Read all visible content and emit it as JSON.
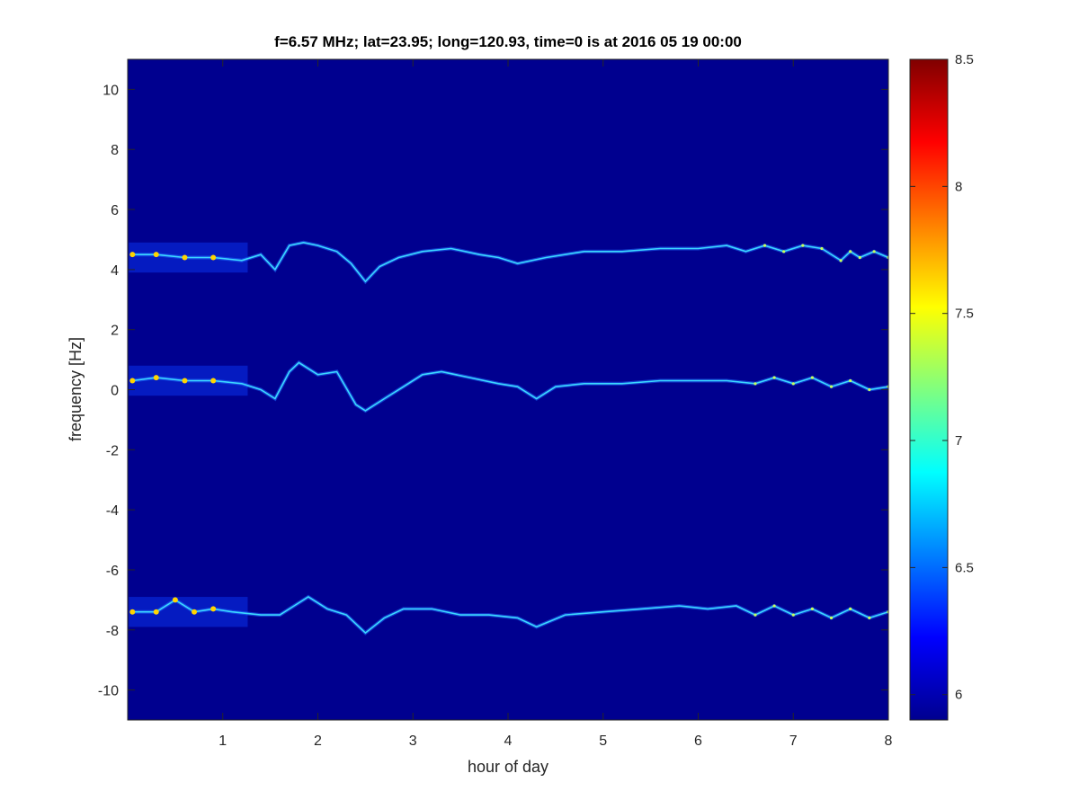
{
  "chart_data": {
    "type": "heatmap",
    "title": "f=6.57 MHz;  lat=23.95; long=120.93, time=0 is at 2016 05 19 00:00",
    "xlabel": "hour of day",
    "ylabel": "frequency [Hz]",
    "xlim": [
      0,
      8
    ],
    "ylim": [
      -11,
      11
    ],
    "xticks": [
      1,
      2,
      3,
      4,
      5,
      6,
      7,
      8
    ],
    "xtick_labels": [
      "1",
      "2",
      "3",
      "4",
      "5",
      "6",
      "7",
      "8"
    ],
    "yticks": [
      10,
      8,
      6,
      4,
      2,
      0,
      -2,
      -4,
      -6,
      -8,
      -10
    ],
    "ytick_labels": [
      "10",
      "8",
      "6",
      "4",
      "2",
      "0",
      "-2",
      "-4",
      "-6",
      "-8",
      "-10"
    ],
    "colorbar": {
      "colormap": "jet",
      "range": [
        5.9,
        8.5
      ],
      "ticks": [
        6,
        6.5,
        7,
        7.5,
        8,
        8.5
      ],
      "tick_labels": [
        "6",
        "6.5",
        "7",
        "7.5",
        "8",
        "8.5"
      ]
    },
    "background_value": 5.95,
    "colors": {
      "background": "#00008f",
      "axes": "#262626"
    },
    "series": [
      {
        "center_freq": 4.4,
        "trace": [
          [
            0.05,
            4.5
          ],
          [
            0.3,
            4.5
          ],
          [
            0.6,
            4.4
          ],
          [
            0.9,
            4.4
          ],
          [
            1.2,
            4.3
          ],
          [
            1.4,
            4.5
          ],
          [
            1.55,
            4.0
          ],
          [
            1.7,
            4.8
          ],
          [
            1.85,
            4.9
          ],
          [
            2.0,
            4.8
          ],
          [
            2.2,
            4.6
          ],
          [
            2.35,
            4.2
          ],
          [
            2.5,
            3.6
          ],
          [
            2.65,
            4.1
          ],
          [
            2.85,
            4.4
          ],
          [
            3.1,
            4.6
          ],
          [
            3.4,
            4.7
          ],
          [
            3.7,
            4.5
          ],
          [
            3.9,
            4.4
          ],
          [
            4.1,
            4.2
          ],
          [
            4.4,
            4.4
          ],
          [
            4.8,
            4.6
          ],
          [
            5.2,
            4.6
          ],
          [
            5.6,
            4.7
          ],
          [
            6.0,
            4.7
          ],
          [
            6.3,
            4.8
          ],
          [
            6.5,
            4.6
          ],
          [
            6.7,
            4.8
          ],
          [
            6.9,
            4.6
          ],
          [
            7.1,
            4.8
          ],
          [
            7.3,
            4.7
          ],
          [
            7.5,
            4.3
          ],
          [
            7.6,
            4.6
          ],
          [
            7.7,
            4.4
          ],
          [
            7.85,
            4.6
          ],
          [
            8.0,
            4.4
          ]
        ]
      },
      {
        "center_freq": 0.3,
        "trace": [
          [
            0.05,
            0.3
          ],
          [
            0.3,
            0.4
          ],
          [
            0.6,
            0.3
          ],
          [
            0.9,
            0.3
          ],
          [
            1.2,
            0.2
          ],
          [
            1.4,
            0.0
          ],
          [
            1.55,
            -0.3
          ],
          [
            1.7,
            0.6
          ],
          [
            1.8,
            0.9
          ],
          [
            2.0,
            0.5
          ],
          [
            2.2,
            0.6
          ],
          [
            2.4,
            -0.5
          ],
          [
            2.5,
            -0.7
          ],
          [
            2.7,
            -0.3
          ],
          [
            2.9,
            0.1
          ],
          [
            3.1,
            0.5
          ],
          [
            3.3,
            0.6
          ],
          [
            3.6,
            0.4
          ],
          [
            3.9,
            0.2
          ],
          [
            4.1,
            0.1
          ],
          [
            4.3,
            -0.3
          ],
          [
            4.5,
            0.1
          ],
          [
            4.8,
            0.2
          ],
          [
            5.2,
            0.2
          ],
          [
            5.6,
            0.3
          ],
          [
            6.0,
            0.3
          ],
          [
            6.3,
            0.3
          ],
          [
            6.6,
            0.2
          ],
          [
            6.8,
            0.4
          ],
          [
            7.0,
            0.2
          ],
          [
            7.2,
            0.4
          ],
          [
            7.4,
            0.1
          ],
          [
            7.6,
            0.3
          ],
          [
            7.8,
            0.0
          ],
          [
            8.0,
            0.1
          ]
        ]
      },
      {
        "center_freq": -7.4,
        "trace": [
          [
            0.05,
            -7.4
          ],
          [
            0.3,
            -7.4
          ],
          [
            0.5,
            -7.0
          ],
          [
            0.7,
            -7.4
          ],
          [
            0.9,
            -7.3
          ],
          [
            1.1,
            -7.4
          ],
          [
            1.4,
            -7.5
          ],
          [
            1.6,
            -7.5
          ],
          [
            1.75,
            -7.2
          ],
          [
            1.9,
            -6.9
          ],
          [
            2.1,
            -7.3
          ],
          [
            2.3,
            -7.5
          ],
          [
            2.5,
            -8.1
          ],
          [
            2.7,
            -7.6
          ],
          [
            2.9,
            -7.3
          ],
          [
            3.2,
            -7.3
          ],
          [
            3.5,
            -7.5
          ],
          [
            3.8,
            -7.5
          ],
          [
            4.1,
            -7.6
          ],
          [
            4.3,
            -7.9
          ],
          [
            4.6,
            -7.5
          ],
          [
            5.0,
            -7.4
          ],
          [
            5.4,
            -7.3
          ],
          [
            5.8,
            -7.2
          ],
          [
            6.1,
            -7.3
          ],
          [
            6.4,
            -7.2
          ],
          [
            6.6,
            -7.5
          ],
          [
            6.8,
            -7.2
          ],
          [
            7.0,
            -7.5
          ],
          [
            7.2,
            -7.3
          ],
          [
            7.4,
            -7.6
          ],
          [
            7.6,
            -7.3
          ],
          [
            7.8,
            -7.6
          ],
          [
            8.0,
            -7.4
          ]
        ]
      }
    ]
  }
}
